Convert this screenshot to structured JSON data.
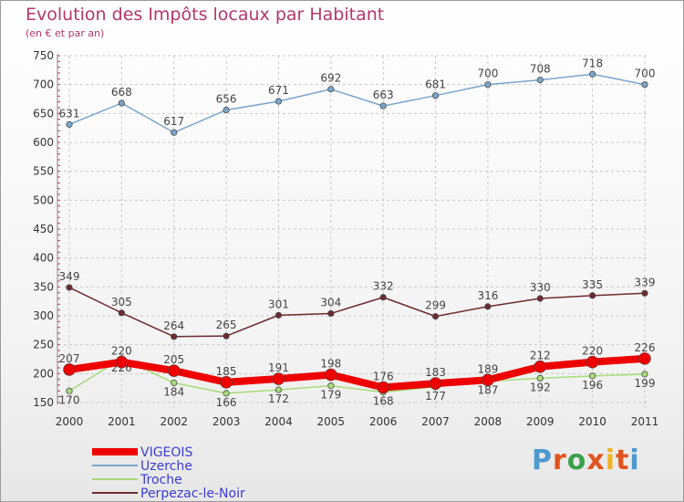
{
  "header": {
    "title": "Evolution des Impôts locaux par Habitant",
    "subtitle": "(en € et par an)"
  },
  "brand": {
    "letters": [
      "P",
      "r",
      "o",
      "x",
      "i",
      "t",
      "i"
    ],
    "colors": [
      "#4d9ad1",
      "#e2541e",
      "#3aa14c",
      "#e2541e",
      "#f0b323",
      "#e2541e",
      "#4d9ad1"
    ]
  },
  "colors": {
    "VIGEOIS": "#ee0000",
    "Uzerche": "#7ba6cc",
    "Troche": "#a6db7a",
    "Perpezac-le-Noir": "#6e2b2f",
    "axis_text": "#333333",
    "grid": "#c8c8c8"
  },
  "chart_data": {
    "type": "line",
    "x": [
      "2000",
      "2001",
      "2002",
      "2003",
      "2004",
      "2005",
      "2006",
      "2007",
      "2008",
      "2009",
      "2010",
      "2011"
    ],
    "ylim": [
      150,
      750
    ],
    "yticks": [
      150,
      200,
      250,
      300,
      350,
      400,
      450,
      500,
      550,
      600,
      650,
      700,
      750
    ],
    "grid": true,
    "legend_position": "bottom-left",
    "series": [
      {
        "name": "Uzerche",
        "values": [
          631,
          668,
          617,
          656,
          671,
          692,
          663,
          681,
          700,
          708,
          718,
          700
        ]
      },
      {
        "name": "Perpezac-le-Noir",
        "values": [
          349,
          305,
          264,
          265,
          301,
          304,
          332,
          299,
          316,
          330,
          335,
          339
        ]
      },
      {
        "name": "Troche",
        "values": [
          170,
          226,
          184,
          166,
          172,
          179,
          168,
          177,
          187,
          192,
          196,
          199
        ]
      },
      {
        "name": "VIGEOIS",
        "values": [
          207,
          220,
          205,
          185,
          191,
          198,
          176,
          183,
          189,
          212,
          220,
          226
        ]
      }
    ]
  }
}
